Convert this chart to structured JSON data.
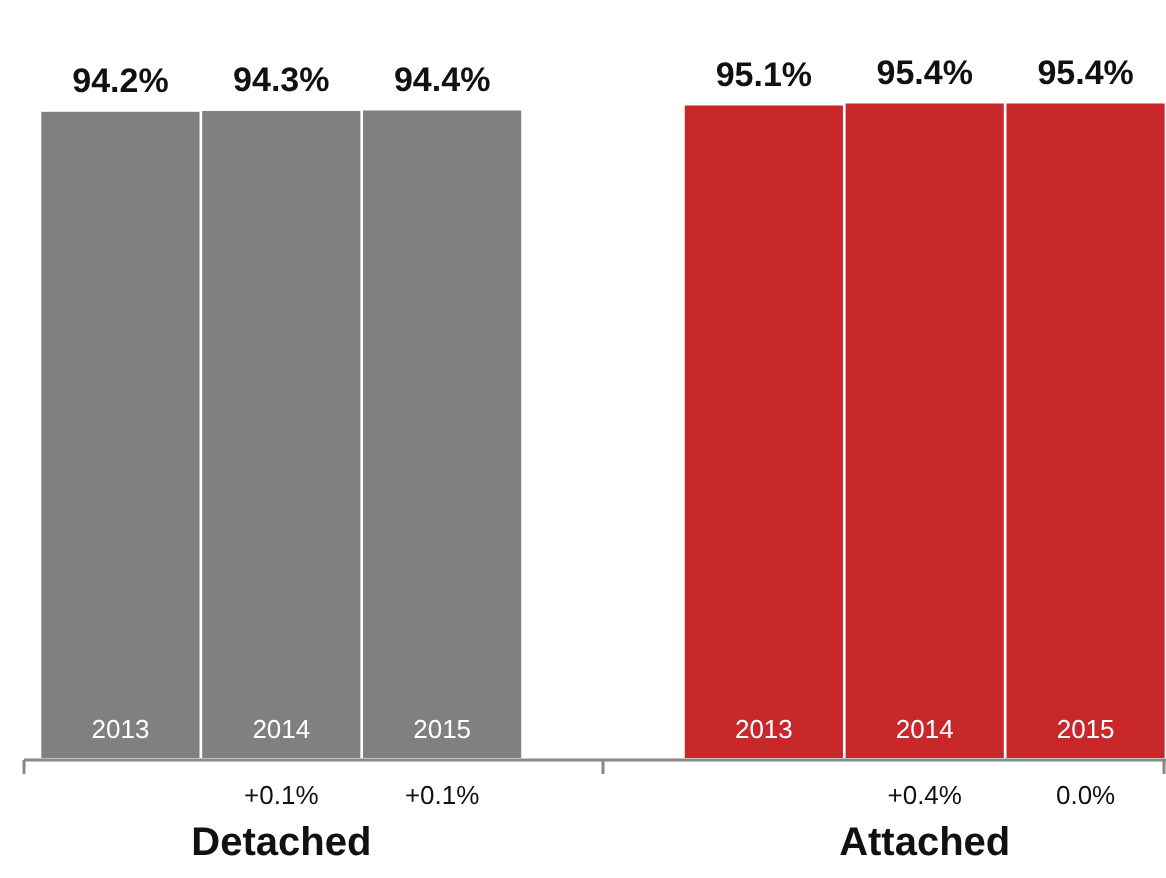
{
  "chart_data": {
    "type": "bar",
    "categories": [
      "2013",
      "2014",
      "2015",
      null,
      "2013",
      "2014",
      "2015"
    ],
    "values": [
      94.2,
      94.3,
      94.4,
      null,
      95.1,
      95.4,
      95.4
    ],
    "value_labels": [
      "94.2%",
      "94.3%",
      "94.4%",
      null,
      "95.1%",
      "95.4%",
      "95.4%"
    ],
    "colors": [
      "#808080",
      "#808080",
      "#808080",
      "#ffffff",
      "#c8282a",
      "#c8282a",
      "#c8282a"
    ],
    "tick_labels": "x",
    "annotations": [
      "+0.1%",
      "+0.1%",
      "+0.4%",
      "0.0%",
      "Detached",
      "Attached"
    ]
  }
}
